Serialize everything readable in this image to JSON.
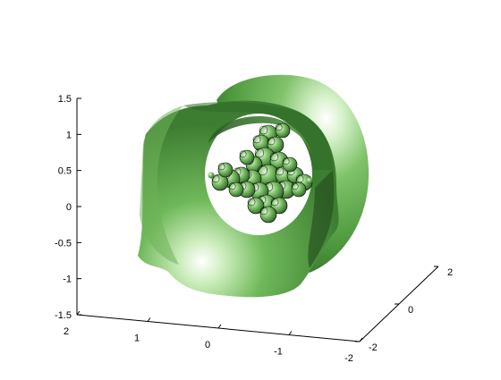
{
  "chart_data": {
    "type": "surface",
    "view": "3d-perspective",
    "grid": false,
    "axes": {
      "z": {
        "ticks": [
          -1.5,
          -1,
          -0.5,
          0,
          0.5,
          1,
          1.5
        ],
        "tick_labels": [
          "-1.5",
          "-1",
          "-0.5",
          "0",
          "0.5",
          "1",
          "1.5"
        ],
        "lim": [
          -1.5,
          1.5
        ]
      },
      "x": {
        "ticks": [
          2,
          1,
          0,
          -1,
          -2
        ],
        "tick_labels": [
          "2",
          "1",
          "0",
          "-1",
          "-2"
        ],
        "lim": [
          -2,
          2
        ]
      },
      "y": {
        "ticks": [
          -2,
          0,
          2
        ],
        "tick_labels": [
          "-2",
          "0",
          "2"
        ],
        "lim": [
          -2,
          2
        ]
      }
    },
    "surfaces": [
      {
        "shape": "lobed-ring",
        "color": "#4f9a3f"
      },
      {
        "shape": "clustered-spheres",
        "color": "#4f9a3f",
        "edge_color": "#000000"
      }
    ]
  }
}
